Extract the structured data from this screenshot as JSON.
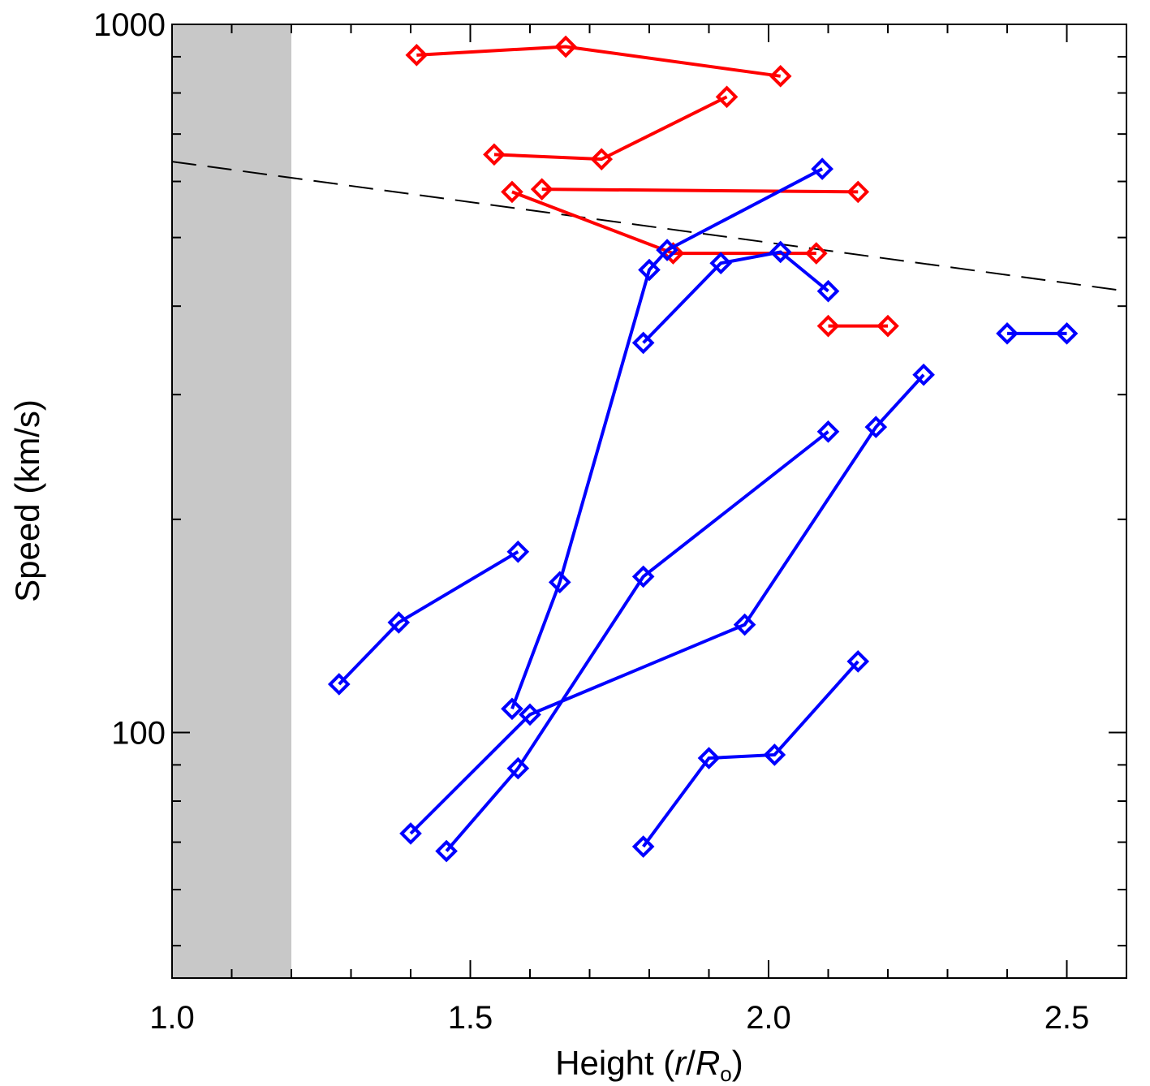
{
  "chart_data": {
    "type": "line",
    "xlabel": "Height (r/R",
    "xlabel_italic_r": "r",
    "xlabel_italic_R": "R",
    "xlabel_sub": "o",
    "xlabel_prefix": "Height (",
    "xlabel_suffix": ")",
    "ylabel": "Speed (km/s)",
    "xlim": [
      1.0,
      2.6
    ],
    "ylim": [
      45,
      1000
    ],
    "y_scale": "log",
    "x_ticks": [
      1.0,
      1.5,
      2.0,
      2.5
    ],
    "x_tick_labels": [
      "1.0",
      "1.5",
      "2.0",
      "2.5"
    ],
    "y_ticks": [
      100,
      1000
    ],
    "y_tick_labels": [
      "100",
      "1000"
    ],
    "shaded_region": {
      "x": [
        1.0,
        1.2
      ],
      "color": "#c8c8c8"
    },
    "reference_line": {
      "style": "dashed",
      "points": [
        [
          1.0,
          640
        ],
        [
          2.6,
          420
        ]
      ]
    },
    "colors": {
      "red": "#ff0000",
      "blue": "#0000ff"
    },
    "series": [
      {
        "color": "red",
        "x": [
          1.41,
          1.66,
          2.02
        ],
        "y": [
          905,
          930,
          845
        ]
      },
      {
        "color": "red",
        "x": [
          1.54,
          1.72,
          1.93
        ],
        "y": [
          655,
          645,
          790
        ]
      },
      {
        "color": "red",
        "x": [
          1.62,
          2.15
        ],
        "y": [
          585,
          580
        ]
      },
      {
        "color": "red",
        "x": [
          1.57,
          1.84,
          2.08
        ],
        "y": [
          580,
          475,
          475
        ]
      },
      {
        "color": "red",
        "x": [
          2.1,
          2.2
        ],
        "y": [
          375,
          375
        ]
      },
      {
        "color": "blue",
        "x": [
          1.57,
          1.65,
          1.8,
          1.83,
          2.09
        ],
        "y": [
          108,
          163,
          450,
          480,
          625
        ]
      },
      {
        "color": "blue",
        "x": [
          1.79,
          1.92,
          2.02,
          2.1
        ],
        "y": [
          355,
          460,
          477,
          420
        ]
      },
      {
        "color": "blue",
        "x": [
          1.28,
          1.38,
          1.58
        ],
        "y": [
          117,
          143,
          180
        ]
      },
      {
        "color": "blue",
        "x": [
          1.46,
          1.58,
          1.79,
          2.1
        ],
        "y": [
          68,
          89,
          166,
          266
        ]
      },
      {
        "color": "blue",
        "x": [
          1.4,
          1.6,
          1.96,
          2.18,
          2.26
        ],
        "y": [
          72,
          106,
          142,
          270,
          320
        ]
      },
      {
        "color": "blue",
        "x": [
          1.79,
          1.9,
          2.01,
          2.15
        ],
        "y": [
          69,
          92,
          93,
          126
        ]
      },
      {
        "color": "blue",
        "x": [
          2.4,
          2.5
        ],
        "y": [
          366,
          366
        ]
      }
    ]
  }
}
